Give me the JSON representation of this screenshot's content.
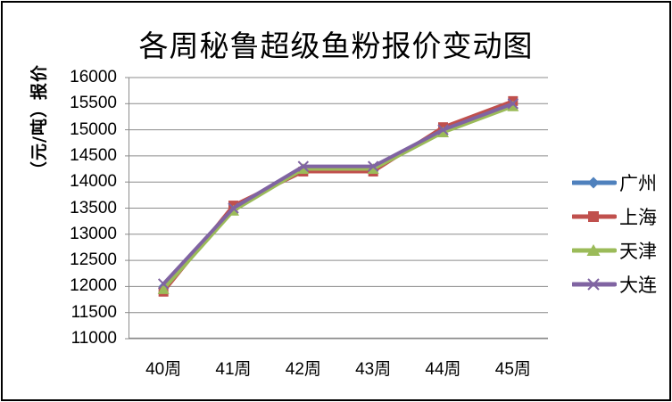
{
  "window": {
    "background": "#ffffff",
    "border_color": "#000000",
    "grid_color": "#8c8c8c",
    "axis_color": "#8c8c8c"
  },
  "chart_data": {
    "type": "line",
    "title": "各周秘鲁超级鱼粉报价变动图",
    "ylabel": "（元/吨）报价",
    "xlabel": "",
    "categories": [
      "40周",
      "41周",
      "42周",
      "43周",
      "44周",
      "45周"
    ],
    "series": [
      {
        "name": "广州",
        "color": "#4F81BD",
        "marker": "diamond",
        "values": [
          12000,
          13500,
          14250,
          14250,
          15000,
          15500
        ]
      },
      {
        "name": "上海",
        "color": "#C0504D",
        "marker": "square",
        "values": [
          11900,
          13550,
          14200,
          14200,
          15050,
          15550
        ]
      },
      {
        "name": "天津",
        "color": "#9BBB59",
        "marker": "triangle",
        "values": [
          11950,
          13450,
          14250,
          14250,
          14950,
          15450
        ]
      },
      {
        "name": "大连",
        "color": "#8064A2",
        "marker": "x",
        "values": [
          12050,
          13500,
          14300,
          14300,
          15000,
          15500
        ]
      }
    ],
    "ylim": [
      11000,
      16000
    ],
    "ytick_step": 500,
    "yticks": [
      11000,
      11500,
      12000,
      12500,
      13000,
      13500,
      14000,
      14500,
      15000,
      15500,
      16000
    ],
    "grid": true,
    "legend_position": "right"
  }
}
